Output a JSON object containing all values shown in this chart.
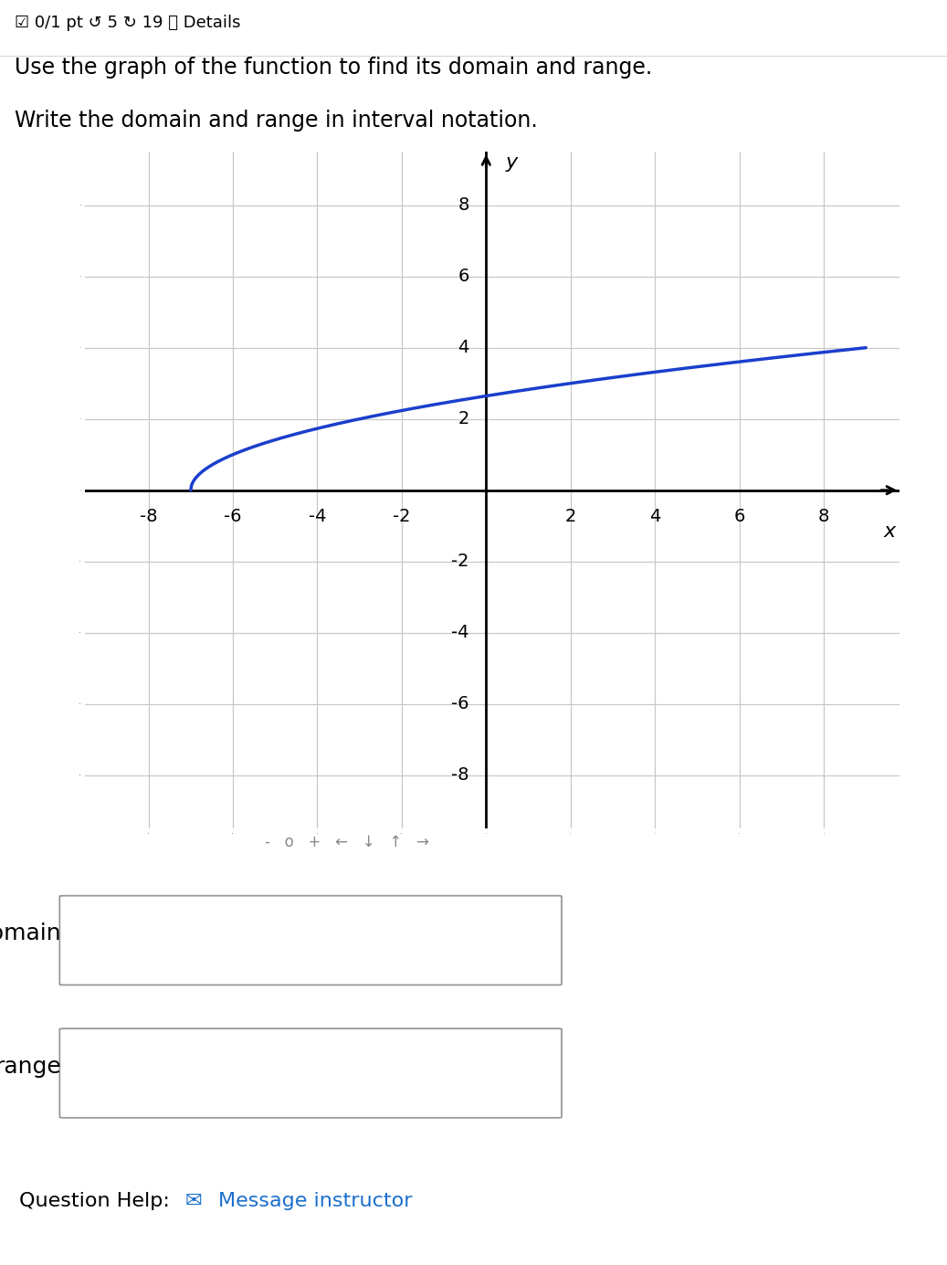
{
  "title_line1": "☑ 0/1 pt ↺ 5 ↻ 19 ⓘ Details",
  "instructions_line1": "Use the graph of the function to find its domain and range.",
  "instructions_line2": "Write the domain and range in interval notation.",
  "xlabel": "x",
  "ylabel": "y",
  "xlim": [
    -9.5,
    9.8
  ],
  "ylim": [
    -9.5,
    9.5
  ],
  "curve_color": "#1a3fcc",
  "curve_linewidth": 2.5,
  "grid_color": "#c8c8c8",
  "background_color": "#ffffff",
  "curve_x_start": -7.0,
  "curve_x_end": 9.0,
  "curve_shift_x": 7.0,
  "curve_scale": 1.0,
  "domain_label": "domain",
  "range_label": "range",
  "question_help": "Question Help:",
  "message_instructor": "Message instructor",
  "message_color": "#1a6fcc",
  "toolbar_items": "-   o   +   ←   ↓   ↑   →",
  "toolbar_color": "#888888",
  "tick_fontsize": 14,
  "label_fontsize": 16,
  "instruction_fontsize": 17,
  "form_label_fontsize": 18
}
